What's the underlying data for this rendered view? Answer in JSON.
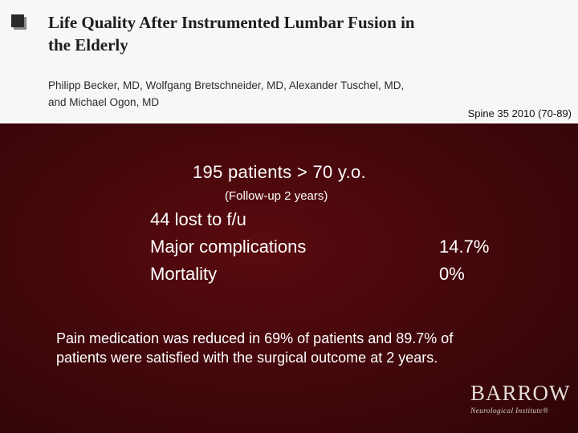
{
  "header": {
    "title_line1": "Life Quality After Instrumented Lumbar Fusion in",
    "title_line2": "the Elderly",
    "authors_line1": "Philipp Becker, MD, Wolfgang Bretschneider, MD, Alexander Tuschel, MD,",
    "authors_line2": "and Michael Ogon, MD",
    "citation": "Spine 35 2010 (70-89)"
  },
  "body": {
    "headline": "195 patients > 70 y.o.",
    "followup": "(Follow-up 2 years)",
    "rows": [
      {
        "label": "44 lost to f/u",
        "value": ""
      },
      {
        "label": "Major complications",
        "value": "14.7%"
      },
      {
        "label": "Mortality",
        "value": "0%"
      }
    ],
    "summary_line1": "Pain medication was reduced in 69% of patients and 89.7% of",
    "summary_line2": "patients were satisfied with the surgical outcome at 2 years."
  },
  "logo": {
    "name": "BARROW",
    "subtitle": "Neurological Institute®"
  },
  "colors": {
    "header_bg": "#f7f7f5",
    "slide_bg": "#45080c",
    "text": "#ffffff"
  }
}
